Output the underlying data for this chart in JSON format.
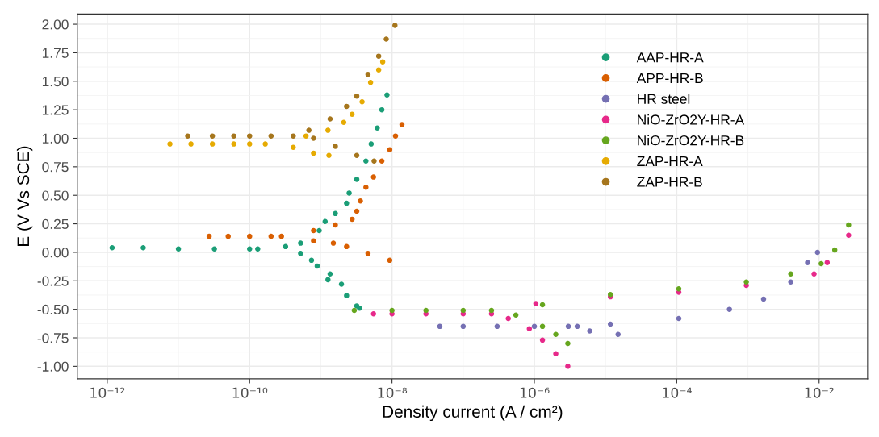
{
  "chart_data": {
    "type": "scatter",
    "xlabel": "Density current (A / cm²)",
    "ylabel": "E (V Vs SCE)",
    "log": "x",
    "grid": true,
    "legend": "top right",
    "marker": "circle",
    "xlim": [
      3.8e-13,
      0.048
    ],
    "ylim": [
      -1.11,
      2.09
    ],
    "xticks": [
      {
        "value": 1e-12,
        "label": "10⁻¹²"
      },
      {
        "value": 1e-10,
        "label": "10⁻¹⁰"
      },
      {
        "value": 1e-08,
        "label": "10⁻⁸"
      },
      {
        "value": 1e-06,
        "label": "10⁻⁶"
      },
      {
        "value": 0.0001,
        "label": "10⁻⁴"
      },
      {
        "value": 0.01,
        "label": "10⁻²"
      }
    ],
    "yticks": [
      {
        "value": -1,
        "label": "-1.00"
      },
      {
        "value": -0.75,
        "label": "-0.75"
      },
      {
        "value": -0.5,
        "label": "-0.50"
      },
      {
        "value": -0.25,
        "label": "-0.25"
      },
      {
        "value": 0,
        "label": "0.00"
      },
      {
        "value": 0.25,
        "label": "0.25"
      },
      {
        "value": 0.5,
        "label": "0.50"
      },
      {
        "value": 0.75,
        "label": "0.75"
      },
      {
        "value": 1,
        "label": "1.00"
      },
      {
        "value": 1.25,
        "label": "1.25"
      },
      {
        "value": 1.5,
        "label": "1.50"
      },
      {
        "value": 1.75,
        "label": "1.75"
      },
      {
        "value": 2,
        "label": "2.00"
      }
    ],
    "series": [
      {
        "name": "AAP-HR-A",
        "color": "#1b9e77",
        "x": [
          1.17e-12,
          3.2e-12,
          1e-11,
          3.2e-11,
          1e-10,
          1.3e-10,
          3.2e-10,
          5.2e-10,
          9.5e-10,
          1.15e-09,
          1.6e-09,
          2.3e-09,
          2.5e-09,
          3.2e-09,
          4.3e-09,
          5.1e-09,
          6.2e-09,
          7.2e-09,
          8.5e-09,
          5.2e-10,
          7.4e-10,
          8.9e-10,
          1.35e-09,
          1.26e-09,
          1.95e-09,
          2.3e-09,
          3.2e-09,
          3.5e-09
        ],
        "values": [
          0.04,
          0.04,
          0.03,
          0.03,
          0.03,
          0.03,
          0.05,
          0.08,
          0.19,
          0.27,
          0.34,
          0.43,
          0.52,
          0.64,
          0.8,
          0.95,
          1.09,
          1.25,
          1.38,
          -0.01,
          -0.07,
          -0.12,
          -0.19,
          -0.24,
          -0.28,
          -0.38,
          -0.47,
          -0.49
        ]
      },
      {
        "name": "APP-HR-B",
        "color": "#d95f02",
        "x": [
          2.7e-11,
          5e-11,
          1e-10,
          2e-10,
          2.8e-10,
          7.9e-10,
          1.5e-09,
          2.3e-09,
          4.6e-09,
          9.3e-09,
          7.9e-10,
          1.6e-09,
          2.75e-09,
          3.2e-09,
          3.6e-09,
          4.3e-09,
          5.5e-09,
          7.2e-09,
          9.3e-09,
          1.12e-08,
          1.38e-08
        ],
        "values": [
          0.14,
          0.14,
          0.14,
          0.14,
          0.14,
          0.1,
          0.08,
          0.05,
          -0.01,
          -0.07,
          0.19,
          0.24,
          0.29,
          0.36,
          0.45,
          0.57,
          0.66,
          0.8,
          0.9,
          1.02,
          1.12
        ]
      },
      {
        "name": "HR steel",
        "color": "#7570b3",
        "x": [
          4.7e-08,
          1e-07,
          3e-07,
          1e-06,
          3e-06,
          4e-06,
          6e-06,
          1.5e-05,
          1.17e-05,
          0.000107,
          0.00055,
          0.00166,
          0.004,
          0.0069,
          0.0095
        ],
        "values": [
          -0.65,
          -0.65,
          -0.65,
          -0.65,
          -0.65,
          -0.65,
          -0.69,
          -0.72,
          -0.63,
          -0.58,
          -0.5,
          -0.41,
          -0.26,
          -0.09,
          0.0
        ]
      },
      {
        "name": "NiO-ZrO2Y-HR-A",
        "color": "#e7298a",
        "x": [
          5.5e-09,
          1e-08,
          3e-08,
          1e-07,
          2.5e-07,
          4.3e-07,
          8.5e-07,
          1.3e-06,
          2e-06,
          2.95e-06,
          1.05e-06,
          1.17e-05,
          0.000107,
          0.00095,
          0.0085,
          0.013,
          0.026
        ],
        "values": [
          -0.54,
          -0.54,
          -0.54,
          -0.54,
          -0.54,
          -0.58,
          -0.67,
          -0.77,
          -0.89,
          -1.0,
          -0.45,
          -0.39,
          -0.35,
          -0.29,
          -0.19,
          -0.09,
          0.15
        ]
      },
      {
        "name": "NiO-ZrO2Y-HR-B",
        "color": "#66a61e",
        "x": [
          2.95e-09,
          1e-08,
          3e-08,
          1e-07,
          2.5e-07,
          5.5e-07,
          1.3e-06,
          2e-06,
          2.95e-06,
          1.3e-06,
          1.17e-05,
          0.000107,
          0.00095,
          0.004,
          0.0107,
          0.0166,
          0.026
        ],
        "values": [
          -0.51,
          -0.51,
          -0.51,
          -0.51,
          -0.51,
          -0.55,
          -0.65,
          -0.72,
          -0.8,
          -0.46,
          -0.37,
          -0.32,
          -0.26,
          -0.19,
          -0.1,
          0.02,
          0.24
        ]
      },
      {
        "name": "ZAP-HR-A",
        "color": "#e6ab02",
        "x": [
          7.6e-12,
          1.5e-11,
          3e-11,
          6e-11,
          1e-10,
          1.66e-10,
          4.1e-10,
          7.9e-10,
          1.3e-09,
          6.2e-10,
          1.26e-09,
          2.1e-09,
          2.75e-09,
          3.8e-09,
          5e-09,
          6.5e-09,
          7.4e-09
        ],
        "values": [
          0.95,
          0.95,
          0.95,
          0.95,
          0.95,
          0.95,
          0.92,
          0.87,
          0.85,
          1.02,
          1.07,
          1.14,
          1.21,
          1.32,
          1.49,
          1.6,
          1.67
        ]
      },
      {
        "name": "ZAP-HR-B",
        "color": "#a6761d",
        "x": [
          1.35e-11,
          3e-11,
          6e-11,
          1e-10,
          2e-10,
          4.1e-10,
          7.9e-10,
          1.6e-09,
          3.2e-09,
          5.6e-09,
          6.8e-10,
          1.35e-09,
          2.3e-09,
          3.2e-09,
          4.6e-09,
          6.5e-09,
          8.3e-09,
          1.1e-08
        ],
        "values": [
          1.02,
          1.02,
          1.02,
          1.02,
          1.02,
          1.02,
          1.0,
          0.93,
          0.85,
          0.8,
          1.07,
          1.17,
          1.28,
          1.37,
          1.56,
          1.72,
          1.87,
          1.99
        ]
      }
    ]
  }
}
